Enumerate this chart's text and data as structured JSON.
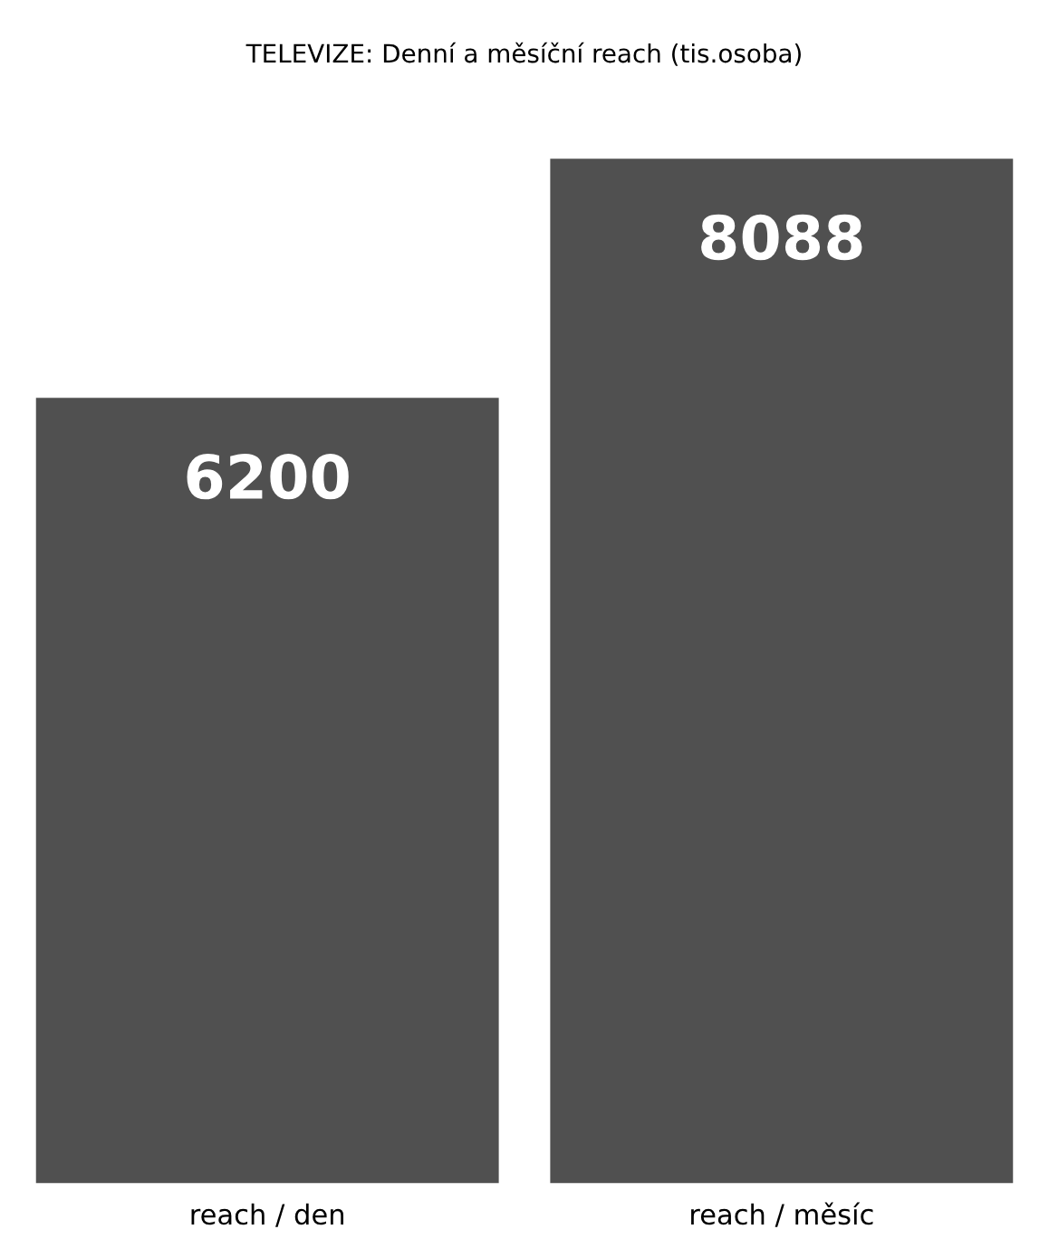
{
  "chart_data": {
    "type": "bar",
    "title": "TELEVIZE: Denní a měsíční reach (tis.osoba)",
    "categories": [
      "reach / den",
      "reach / měsíc"
    ],
    "values": [
      6200,
      8088
    ],
    "color": "#505050",
    "data_labels": true,
    "grid": false,
    "legend": false
  }
}
